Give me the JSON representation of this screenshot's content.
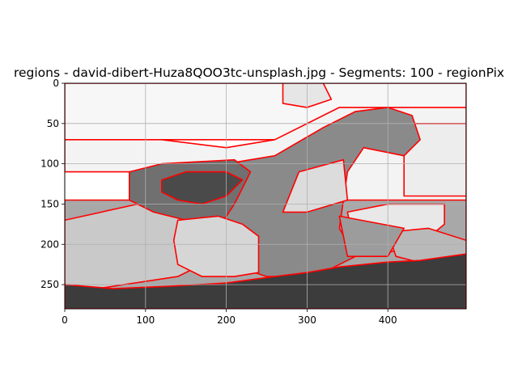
{
  "chart_data": {
    "type": "heatmap",
    "title": "regions - david-dibert-Huza8QOO3tc-unsplash.jpg - Segments: 100 - regionPix",
    "xlabel": "",
    "ylabel": "",
    "xlim": [
      0,
      497
    ],
    "ylim": [
      280,
      0
    ],
    "x_ticks": [
      0,
      100,
      200,
      300,
      400
    ],
    "y_ticks": [
      0,
      50,
      100,
      150,
      200,
      250
    ],
    "grid": true,
    "colormap": "gray",
    "segments": 100,
    "boundary_color": "#ff0000",
    "regions": [
      {
        "shade": "#f7f7f7",
        "points": [
          [
            0,
            0
          ],
          [
            497,
            0
          ],
          [
            497,
            70
          ],
          [
            0,
            70
          ]
        ]
      },
      {
        "shade": "#e6e6e6",
        "points": [
          [
            270,
            0
          ],
          [
            320,
            0
          ],
          [
            330,
            20
          ],
          [
            300,
            30
          ],
          [
            270,
            25
          ]
        ]
      },
      {
        "shade": "#f3f3f3",
        "points": [
          [
            0,
            70
          ],
          [
            120,
            70
          ],
          [
            200,
            80
          ],
          [
            260,
            70
          ],
          [
            340,
            30
          ],
          [
            497,
            30
          ],
          [
            497,
            150
          ],
          [
            350,
            150
          ],
          [
            340,
            90
          ],
          [
            300,
            120
          ],
          [
            230,
            110
          ],
          [
            80,
            110
          ],
          [
            0,
            110
          ]
        ]
      },
      {
        "shade": "#ededed",
        "points": [
          [
            420,
            50
          ],
          [
            497,
            50
          ],
          [
            497,
            140
          ],
          [
            420,
            140
          ]
        ]
      },
      {
        "shade": "#a8a8a8",
        "points": [
          [
            0,
            145
          ],
          [
            497,
            145
          ],
          [
            497,
            280
          ],
          [
            0,
            280
          ]
        ]
      },
      {
        "shade": "#c9c9c9",
        "points": [
          [
            0,
            170
          ],
          [
            90,
            150
          ],
          [
            170,
            150
          ],
          [
            200,
            210
          ],
          [
            140,
            240
          ],
          [
            40,
            255
          ],
          [
            0,
            255
          ]
        ]
      },
      {
        "shade": "#8a8a8a",
        "points": [
          [
            200,
            100
          ],
          [
            260,
            90
          ],
          [
            320,
            55
          ],
          [
            360,
            35
          ],
          [
            400,
            30
          ],
          [
            430,
            40
          ],
          [
            440,
            70
          ],
          [
            420,
            90
          ],
          [
            370,
            80
          ],
          [
            350,
            110
          ],
          [
            340,
            180
          ],
          [
            360,
            215
          ],
          [
            330,
            230
          ],
          [
            300,
            240
          ],
          [
            250,
            240
          ],
          [
            220,
            230
          ],
          [
            200,
            190
          ],
          [
            170,
            130
          ]
        ]
      },
      {
        "shade": "#707070",
        "points": [
          [
            80,
            110
          ],
          [
            120,
            100
          ],
          [
            210,
            95
          ],
          [
            230,
            110
          ],
          [
            210,
            150
          ],
          [
            190,
            180
          ],
          [
            150,
            170
          ],
          [
            110,
            160
          ],
          [
            80,
            145
          ]
        ]
      },
      {
        "shade": "#4a4a4a",
        "points": [
          [
            120,
            120
          ],
          [
            150,
            110
          ],
          [
            200,
            110
          ],
          [
            220,
            120
          ],
          [
            200,
            140
          ],
          [
            170,
            150
          ],
          [
            140,
            145
          ],
          [
            120,
            135
          ]
        ]
      },
      {
        "shade": "#e8e8e8",
        "points": [
          [
            350,
            160
          ],
          [
            400,
            150
          ],
          [
            470,
            150
          ],
          [
            470,
            175
          ],
          [
            440,
            200
          ],
          [
            400,
            210
          ],
          [
            360,
            205
          ]
        ]
      },
      {
        "shade": "#dcdcdc",
        "points": [
          [
            290,
            110
          ],
          [
            345,
            95
          ],
          [
            350,
            145
          ],
          [
            300,
            160
          ],
          [
            270,
            160
          ]
        ]
      },
      {
        "shade": "#d6d6d6",
        "points": [
          [
            140,
            170
          ],
          [
            190,
            165
          ],
          [
            220,
            175
          ],
          [
            240,
            190
          ],
          [
            240,
            235
          ],
          [
            210,
            240
          ],
          [
            170,
            240
          ],
          [
            140,
            225
          ],
          [
            135,
            195
          ]
        ]
      },
      {
        "shade": "#b9b9b9",
        "points": [
          [
            400,
            185
          ],
          [
            450,
            180
          ],
          [
            497,
            195
          ],
          [
            497,
            225
          ],
          [
            450,
            225
          ],
          [
            410,
            215
          ]
        ]
      },
      {
        "shade": "#9c9c9c",
        "points": [
          [
            340,
            165
          ],
          [
            420,
            180
          ],
          [
            400,
            215
          ],
          [
            350,
            215
          ]
        ]
      },
      {
        "shade": "#3c3c3c",
        "points": [
          [
            0,
            250
          ],
          [
            60,
            255
          ],
          [
            130,
            252
          ],
          [
            200,
            248
          ],
          [
            260,
            240
          ],
          [
            300,
            235
          ],
          [
            340,
            228
          ],
          [
            400,
            222
          ],
          [
            440,
            220
          ],
          [
            497,
            212
          ],
          [
            497,
            280
          ],
          [
            0,
            280
          ]
        ]
      }
    ]
  }
}
